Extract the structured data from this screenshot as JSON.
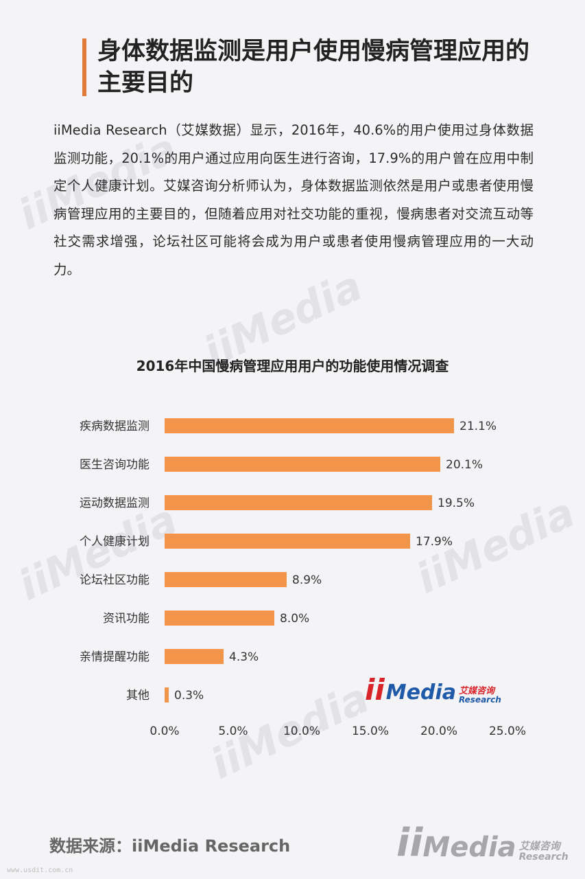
{
  "page": {
    "title": "身体数据监测是用户使用慢病管理应用的主要目的",
    "intro": "iiMedia Research（艾媒数据）显示，2016年，40.6%的用户使用过身体数据监测功能，20.1%的用户通过应用向医生进行咨询，17.9%的用户曾在应用中制定个人健康计划。艾媒咨询分析师认为，身体数据监测依然是用户或患者使用慢病管理应用的主要目的，但随着应用对社交功能的重视，慢病患者对交流互动等社交需求增强，论坛社区可能将会成为用户或患者使用慢病管理应用的一大动力。",
    "source": "数据来源：iiMedia Research",
    "url": "www.usdit.com.cn",
    "accent_color": "#e27b38"
  },
  "logo": {
    "mark": "ii",
    "word": "Media",
    "cn": "艾媒咨询",
    "en": "Research",
    "colors": {
      "mark": "#d9252a",
      "word": "#1f5aa8",
      "cn": "#d9252a"
    }
  },
  "watermark": {
    "text": "iiMedia",
    "cn": "艾媒咨询",
    "en": "Research"
  },
  "chart_data": {
    "type": "bar",
    "orientation": "horizontal",
    "title": "2016年中国慢病管理应用用户的功能使用情况调查",
    "categories": [
      "疾病数据监测",
      "医生咨询功能",
      "运动数据监测",
      "个人健康计划",
      "论坛社区功能",
      "资讯功能",
      "亲情提醒功能",
      "其他"
    ],
    "values": [
      21.1,
      20.1,
      19.5,
      17.9,
      8.9,
      8.0,
      4.3,
      0.3
    ],
    "value_labels": [
      "21.1%",
      "20.1%",
      "19.5%",
      "17.9%",
      "8.9%",
      "8.0%",
      "4.3%",
      "0.3%"
    ],
    "xlim": [
      0,
      25
    ],
    "xticks": [
      0,
      5,
      10,
      15,
      20,
      25
    ],
    "xtick_labels": [
      "0.0%",
      "5.0%",
      "10.0%",
      "15.0%",
      "20.0%",
      "25.0%"
    ],
    "bar_color": "#f2954b",
    "grid": false,
    "legend": "none"
  }
}
